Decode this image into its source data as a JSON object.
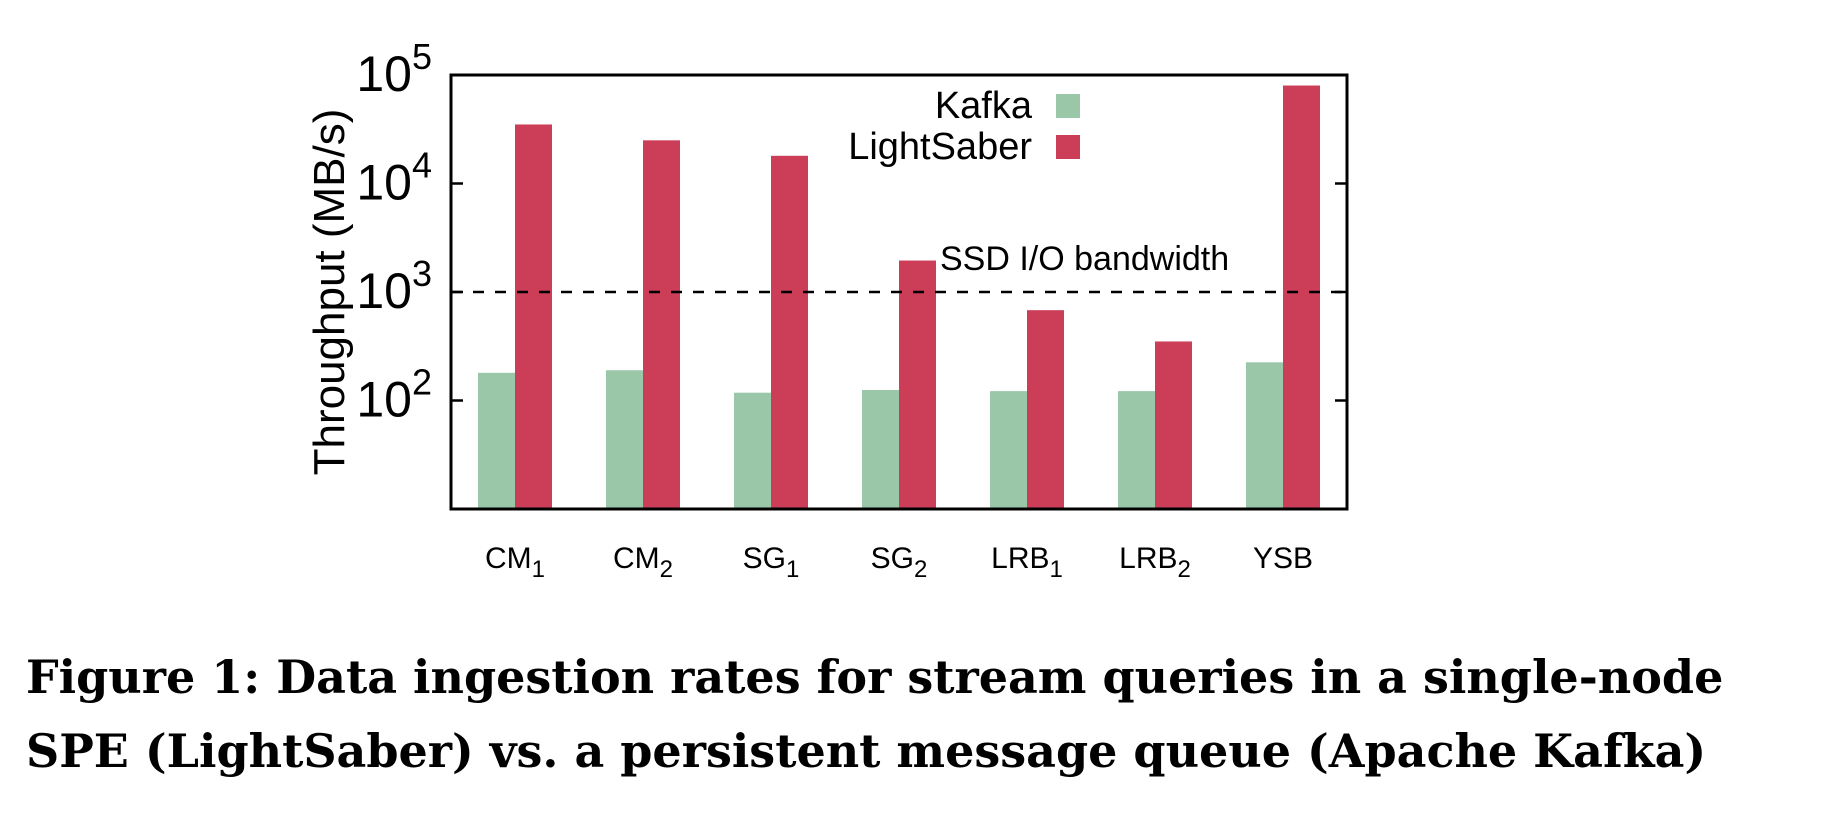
{
  "chart_data": {
    "type": "bar",
    "categories": [
      {
        "base": "CM",
        "sub": "1"
      },
      {
        "base": "CM",
        "sub": "2"
      },
      {
        "base": "SG",
        "sub": "1"
      },
      {
        "base": "SG",
        "sub": "2"
      },
      {
        "base": "LRB",
        "sub": "1"
      },
      {
        "base": "LRB",
        "sub": "2"
      },
      {
        "base": "YSB",
        "sub": ""
      }
    ],
    "series": [
      {
        "name": "Kafka",
        "color": "#99c7a8",
        "values": [
          180,
          190,
          118,
          125,
          122,
          122,
          225
        ]
      },
      {
        "name": "LightSaber",
        "color": "#cc3e58",
        "values": [
          35000,
          25000,
          18000,
          1950,
          680,
          350,
          80000
        ]
      }
    ],
    "ylabel": "Throughput (MB/s)",
    "yscale": "log",
    "ylim": [
      10,
      100000
    ],
    "yticks": [
      {
        "value": 100,
        "base": "10",
        "exp": "2"
      },
      {
        "value": 1000,
        "base": "10",
        "exp": "3"
      },
      {
        "value": 10000,
        "base": "10",
        "exp": "4"
      },
      {
        "value": 100000,
        "base": "10",
        "exp": "5"
      }
    ],
    "reference_line": {
      "value": 1000,
      "label": "SSD I/O bandwidth",
      "style": "dashed"
    },
    "legend_position": "top-center",
    "grid": false
  },
  "caption": {
    "line1": "Figure 1: Data ingestion rates for stream queries in a single-node",
    "line2": "SPE (LightSaber) vs. a persistent message queue (Apache Kafka)"
  }
}
